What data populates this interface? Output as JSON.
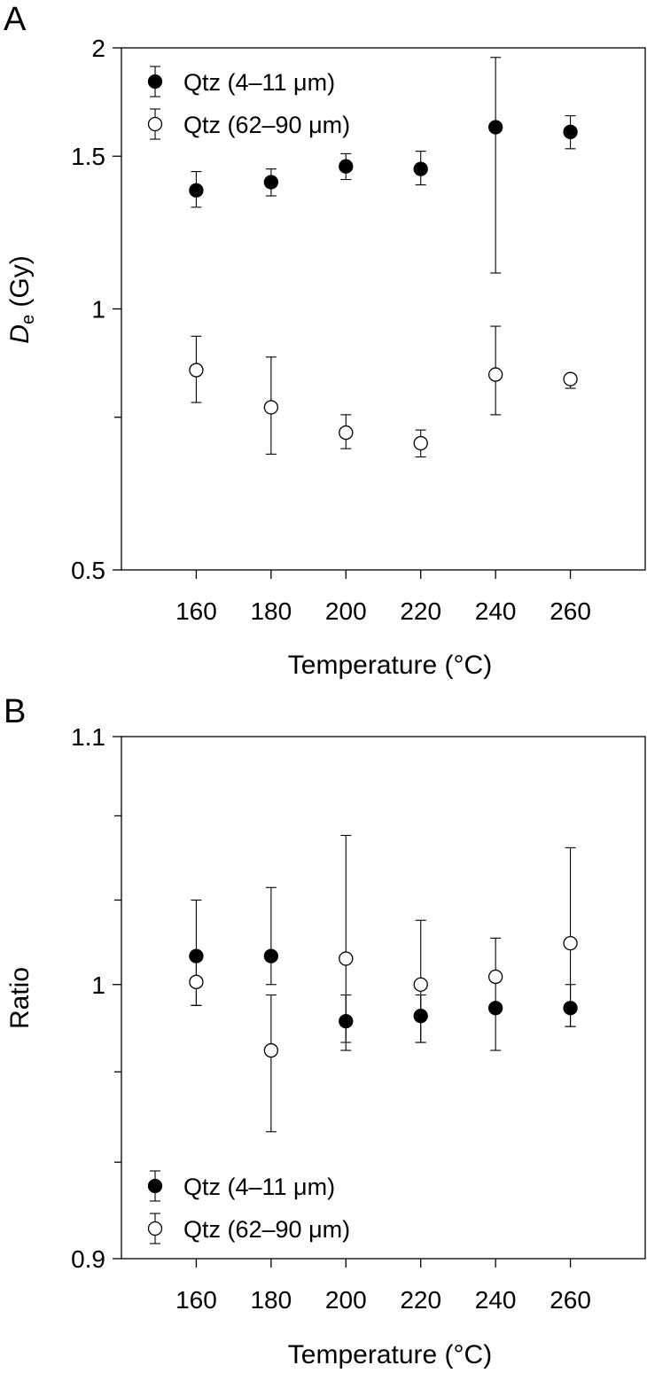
{
  "chart_data": [
    {
      "type": "scatter",
      "panel_label": "A",
      "xlabel": "Temperature (°C)",
      "ylabel_main": "D",
      "ylabel_sub": "e",
      "ylabel_rest": " (Gy)",
      "y_scale": "log",
      "xlim": [
        140,
        280
      ],
      "ylim": [
        0.5,
        2
      ],
      "xticks": [
        160,
        180,
        200,
        220,
        240,
        260
      ],
      "yticks": [
        0.5,
        1,
        1.5,
        2
      ],
      "ytick_labels": [
        "0.5",
        "1",
        "1.5",
        "2"
      ],
      "minor_yticks": [
        0.75
      ],
      "grid": false,
      "legend_position": "top-left",
      "series": [
        {
          "name": "Qtz (4–11 μm)",
          "marker": "filled-circle",
          "x": [
            160,
            180,
            200,
            220,
            240,
            260
          ],
          "y": [
            1.37,
            1.4,
            1.46,
            1.45,
            1.62,
            1.6
          ],
          "err_low": [
            1.31,
            1.35,
            1.41,
            1.39,
            1.1,
            1.53
          ],
          "err_high": [
            1.44,
            1.45,
            1.51,
            1.52,
            1.95,
            1.67
          ]
        },
        {
          "name": "Qtz (62–90 μm)",
          "marker": "open-circle",
          "x": [
            160,
            180,
            200,
            220,
            240,
            260
          ],
          "y": [
            0.85,
            0.77,
            0.72,
            0.7,
            0.84,
            0.83
          ],
          "err_low": [
            0.78,
            0.68,
            0.69,
            0.675,
            0.755,
            0.81
          ],
          "err_high": [
            0.93,
            0.88,
            0.755,
            0.725,
            0.955,
            0.84
          ]
        }
      ]
    },
    {
      "type": "scatter",
      "panel_label": "B",
      "xlabel": "Temperature (°C)",
      "ylabel": "Ratio",
      "y_scale": "log",
      "xlim": [
        140,
        280
      ],
      "ylim": [
        0.9,
        1.1
      ],
      "xticks": [
        160,
        180,
        200,
        220,
        240,
        260
      ],
      "yticks": [
        0.9,
        1,
        1.1
      ],
      "ytick_labels": [
        "0.9",
        "1",
        "1.1"
      ],
      "minor_yticks": [
        0.934,
        0.967,
        1.033,
        1.067
      ],
      "grid": false,
      "legend_position": "bottom-left",
      "series": [
        {
          "name": "Qtz (4–11 μm)",
          "marker": "filled-circle",
          "x": [
            160,
            180,
            200,
            220,
            240,
            260
          ],
          "y": [
            1.011,
            1.011,
            0.986,
            0.988,
            0.991,
            0.991
          ],
          "err_low": [
            0.992,
            1.0,
            0.978,
            0.978,
            0.992,
            0.984
          ],
          "err_high": [
            1.033,
            1.038,
            0.996,
            0.996,
            0.992,
            1.0
          ]
        },
        {
          "name": "Qtz (62–90 μm)",
          "marker": "open-circle",
          "x": [
            160,
            180,
            200,
            220,
            240,
            260
          ],
          "y": [
            1.001,
            0.975,
            1.01,
            1.0,
            1.003,
            1.016
          ],
          "err_low": [
            0.992,
            0.945,
            0.975,
            0.978,
            0.975,
            0.984
          ],
          "err_high": [
            1.011,
            0.996,
            1.059,
            1.025,
            1.018,
            1.054
          ]
        }
      ]
    }
  ]
}
